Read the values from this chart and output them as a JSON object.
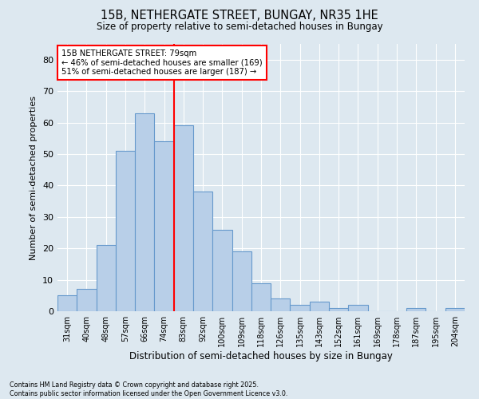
{
  "title1": "15B, NETHERGATE STREET, BUNGAY, NR35 1HE",
  "title2": "Size of property relative to semi-detached houses in Bungay",
  "xlabel": "Distribution of semi-detached houses by size in Bungay",
  "ylabel": "Number of semi-detached properties",
  "categories": [
    "31sqm",
    "40sqm",
    "48sqm",
    "57sqm",
    "66sqm",
    "74sqm",
    "83sqm",
    "92sqm",
    "100sqm",
    "109sqm",
    "118sqm",
    "126sqm",
    "135sqm",
    "143sqm",
    "152sqm",
    "161sqm",
    "169sqm",
    "178sqm",
    "187sqm",
    "195sqm",
    "204sqm"
  ],
  "values": [
    5,
    7,
    21,
    51,
    63,
    54,
    59,
    38,
    26,
    19,
    9,
    4,
    2,
    3,
    1,
    2,
    0,
    0,
    1,
    0,
    1
  ],
  "bar_color": "#b8cfe8",
  "bar_edge_color": "#6699cc",
  "vline_color": "red",
  "annotation_title": "15B NETHERGATE STREET: 79sqm",
  "annotation_line1": "← 46% of semi-detached houses are smaller (169)",
  "annotation_line2": "51% of semi-detached houses are larger (187) →",
  "footer": "Contains HM Land Registry data © Crown copyright and database right 2025.\nContains public sector information licensed under the Open Government Licence v3.0.",
  "ylim": [
    0,
    85
  ],
  "yticks": [
    0,
    10,
    20,
    30,
    40,
    50,
    60,
    70,
    80
  ],
  "background_color": "#dde8f0",
  "plot_background": "#dde8f0"
}
